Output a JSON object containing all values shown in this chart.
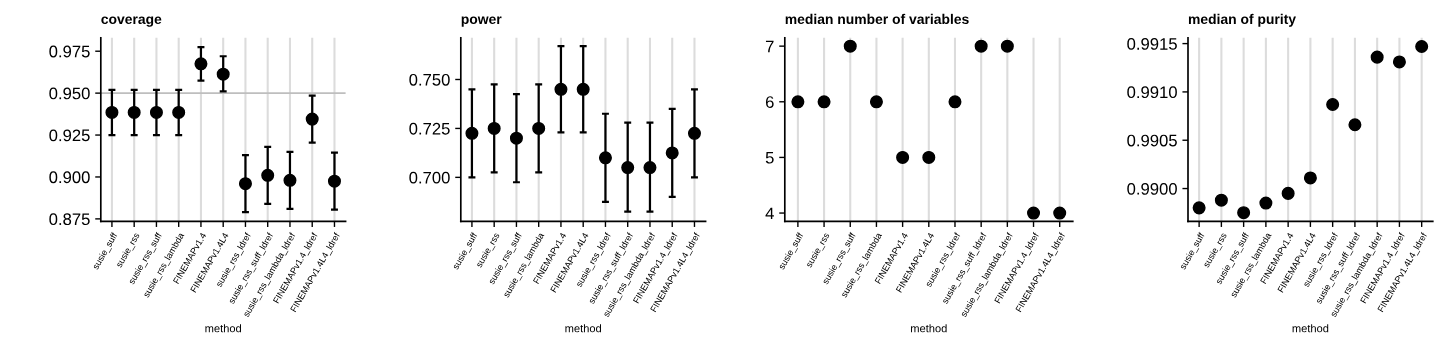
{
  "chart_data": [
    {
      "type": "scatter",
      "title": "coverage",
      "xlabel": "method",
      "categories": [
        "susie_suff",
        "susie_rss",
        "susie_rss_suff",
        "susie_rss_lambda",
        "FINEMAPv1.4",
        "FINEMAPv1.4L4",
        "susie_rss_ldref",
        "susie_rss_suff_ldref",
        "susie_rss_lambda_ldref",
        "FINEMAPv1.4_ldref",
        "FINEMAPv1.4L4_ldref"
      ],
      "series": [
        {
          "color": "#000000",
          "values": [
            0.9385,
            0.9385,
            0.9385,
            0.9385,
            0.9675,
            0.9613,
            0.896,
            0.901,
            0.898,
            0.9345,
            0.8975
          ],
          "errors": [
            [
              0.925,
              0.952
            ],
            [
              0.925,
              0.952
            ],
            [
              0.925,
              0.952
            ],
            [
              0.925,
              0.952
            ],
            [
              0.9575,
              0.9775
            ],
            [
              0.951,
              0.972
            ],
            [
              0.879,
              0.913
            ],
            [
              0.884,
              0.918
            ],
            [
              0.881,
              0.915
            ],
            [
              0.9205,
              0.9485
            ],
            [
              0.8805,
              0.9145
            ]
          ]
        }
      ],
      "ylim": [
        0.8735,
        0.983
      ],
      "yticks": [
        {
          "value": 0.875,
          "label": "0.875"
        },
        {
          "value": 0.9,
          "label": "0.900"
        },
        {
          "value": 0.925,
          "label": "0.925"
        },
        {
          "value": 0.95,
          "label": "0.950"
        },
        {
          "value": 0.975,
          "label": "0.975"
        }
      ],
      "ref_lines": [
        {
          "axis": "y",
          "value": 0.95,
          "color": "#bebebe"
        }
      ],
      "grid": "x",
      "marker": "circle"
    },
    {
      "type": "scatter",
      "title": "power",
      "xlabel": "method",
      "categories": [
        "susie_suff",
        "susie_rss",
        "susie_rss_suff",
        "susie_rss_lambda",
        "FINEMAPv1.4",
        "FINEMAPv1.4L4",
        "susie_rss_ldref",
        "susie_rss_suff_ldref",
        "susie_rss_lambda_ldref",
        "FINEMAPv1.4_ldref",
        "FINEMAPv1.4L4_ldref"
      ],
      "series": [
        {
          "color": "#000000",
          "values": [
            0.7225,
            0.725,
            0.72,
            0.725,
            0.745,
            0.745,
            0.71,
            0.705,
            0.705,
            0.7125,
            0.7225
          ],
          "errors": [
            [
              0.7,
              0.745
            ],
            [
              0.7025,
              0.7475
            ],
            [
              0.6975,
              0.7425
            ],
            [
              0.7025,
              0.7475
            ],
            [
              0.723,
              0.767
            ],
            [
              0.723,
              0.767
            ],
            [
              0.6875,
              0.7325
            ],
            [
              0.6825,
              0.728
            ],
            [
              0.6825,
              0.728
            ],
            [
              0.69,
              0.735
            ],
            [
              0.7,
              0.745
            ]
          ]
        }
      ],
      "ylim": [
        0.6775,
        0.7713
      ],
      "yticks": [
        {
          "value": 0.7,
          "label": "0.700"
        },
        {
          "value": 0.725,
          "label": "0.725"
        },
        {
          "value": 0.75,
          "label": "0.750"
        }
      ],
      "grid": "x",
      "marker": "circle"
    },
    {
      "type": "scatter",
      "title": "median number of variables",
      "xlabel": "method",
      "categories": [
        "susie_suff",
        "susie_rss",
        "susie_rss_suff",
        "susie_rss_lambda",
        "FINEMAPv1.4",
        "FINEMAPv1.4L4",
        "susie_rss_ldref",
        "susie_rss_suff_ldref",
        "susie_rss_lambda_ldref",
        "FINEMAPv1.4_ldref",
        "FINEMAPv1.4L4_ldref"
      ],
      "series": [
        {
          "color": "#000000",
          "values": [
            6,
            6,
            7,
            6,
            5,
            5,
            6,
            7,
            7,
            4,
            4
          ]
        }
      ],
      "ylim": [
        3.85,
        7.15
      ],
      "yticks": [
        4,
        5,
        6,
        7
      ],
      "grid": "x",
      "marker": "circle"
    },
    {
      "type": "scatter",
      "title": "median of purity",
      "xlabel": "method",
      "categories": [
        "susie_suff",
        "susie_rss",
        "susie_rss_suff",
        "susie_rss_lambda",
        "FINEMAPv1.4",
        "FINEMAPv1.4L4",
        "susie_rss_ldref",
        "susie_rss_suff_ldref",
        "susie_rss_lambda_ldref",
        "FINEMAPv1.4_ldref",
        "FINEMAPv1.4L4_ldref"
      ],
      "series": [
        {
          "color": "#000000",
          "values": [
            0.9898,
            0.98988,
            0.98975,
            0.98985,
            0.98995,
            0.99011,
            0.99087,
            0.99066,
            0.99136,
            0.99131,
            0.99147
          ]
        }
      ],
      "ylim": [
        0.98966,
        0.99156
      ],
      "yticks": [
        {
          "value": 0.99,
          "label": "0.9900"
        },
        {
          "value": 0.9905,
          "label": "0.9905"
        },
        {
          "value": 0.991,
          "label": "0.9910"
        },
        {
          "value": 0.9915,
          "label": "0.9915"
        }
      ],
      "grid": "x",
      "marker": "circle"
    }
  ]
}
